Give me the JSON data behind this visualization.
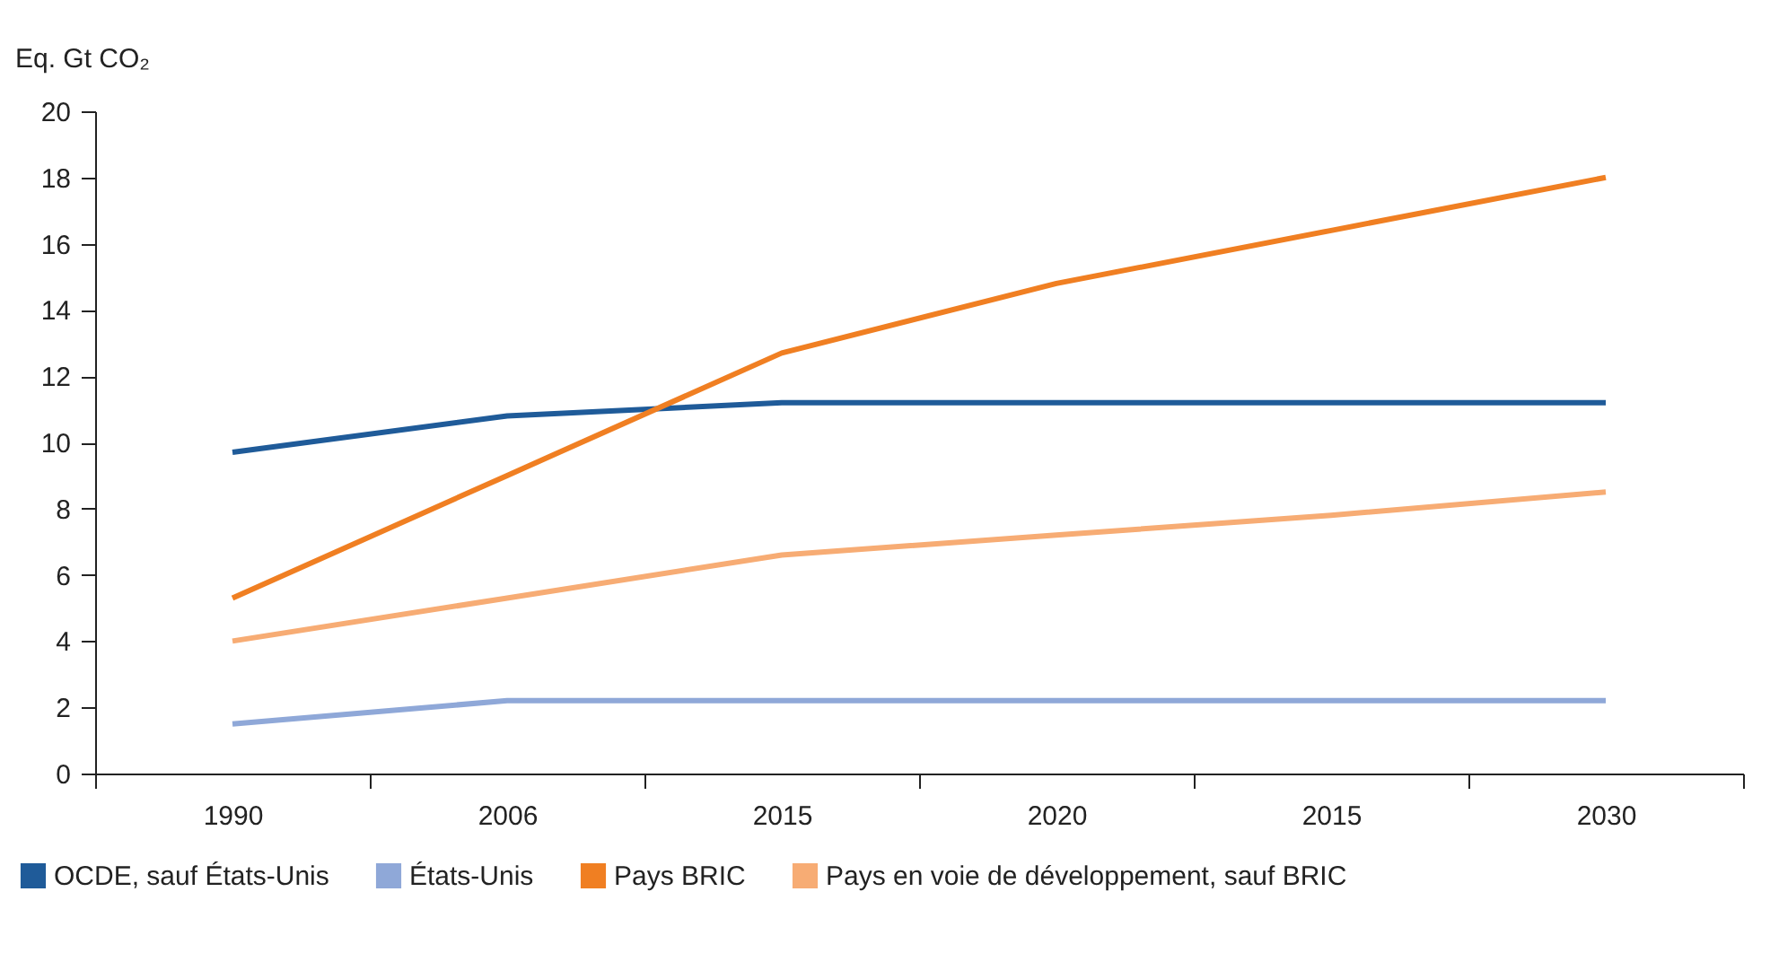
{
  "chart_data": {
    "type": "line",
    "ylabel": "Eq. Gt CO₂",
    "categories": [
      "1990",
      "2006",
      "2015",
      "2020",
      "2015",
      "2030"
    ],
    "series": [
      {
        "name": "OCDE, sauf États-Unis",
        "color": "#1f5b99",
        "values": [
          9.7,
          10.8,
          11.2,
          11.2,
          11.2,
          11.2
        ]
      },
      {
        "name": "États-Unis",
        "color": "#8fa8d8",
        "values": [
          1.5,
          2.2,
          2.2,
          2.2,
          2.2,
          2.2
        ]
      },
      {
        "name": "Pays BRIC",
        "color": "#f07f22",
        "values": [
          5.3,
          9.0,
          12.7,
          14.8,
          16.4,
          18.0
        ]
      },
      {
        "name": "Pays en voie de développement, sauf BRIC",
        "color": "#f7ac74",
        "values": [
          4.0,
          5.3,
          6.6,
          7.2,
          7.8,
          8.5
        ]
      }
    ],
    "ylim": [
      0,
      20
    ],
    "yticks": [
      0,
      2,
      4,
      6,
      8,
      10,
      12,
      14,
      16,
      18,
      20
    ],
    "grid": false,
    "legend": "bottom",
    "marker": "none",
    "line_style": "solid"
  }
}
